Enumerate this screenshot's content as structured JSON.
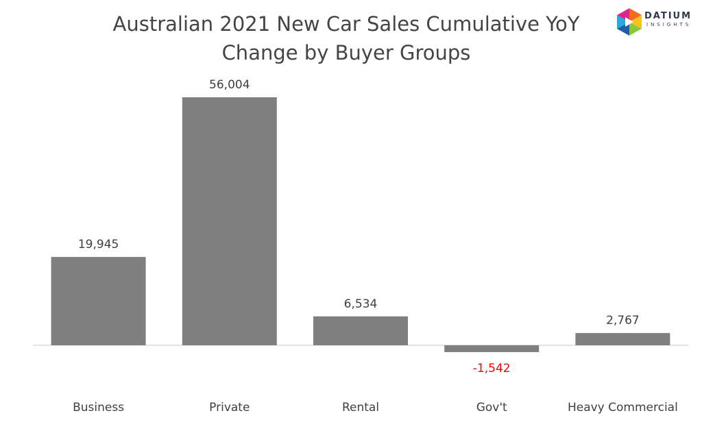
{
  "title": "Australian 2021 New Car Sales Cumulative YoY Change by Buyer Groups",
  "logo": {
    "name": "DATIUM",
    "tagline": "INSIGHTS"
  },
  "colors": {
    "bar": "#7f7f7f",
    "axis": "#d9d9d9",
    "label": "#404040",
    "negative_label": "#ff0000",
    "title": "#444444"
  },
  "chart_data": {
    "type": "bar",
    "title": "Australian 2021 New Car Sales Cumulative YoY Change by Buyer Groups",
    "xlabel": "",
    "ylabel": "",
    "categories": [
      "Business",
      "Private",
      "Rental",
      "Gov't",
      "Heavy Commercial"
    ],
    "values": [
      19945,
      56004,
      6534,
      -1542,
      2767
    ],
    "value_labels": [
      "19,945",
      "56,004",
      "6,534",
      "-1,542",
      "2,767"
    ],
    "ylim": [
      -3000,
      60000
    ],
    "grid": false,
    "legend": "none"
  }
}
